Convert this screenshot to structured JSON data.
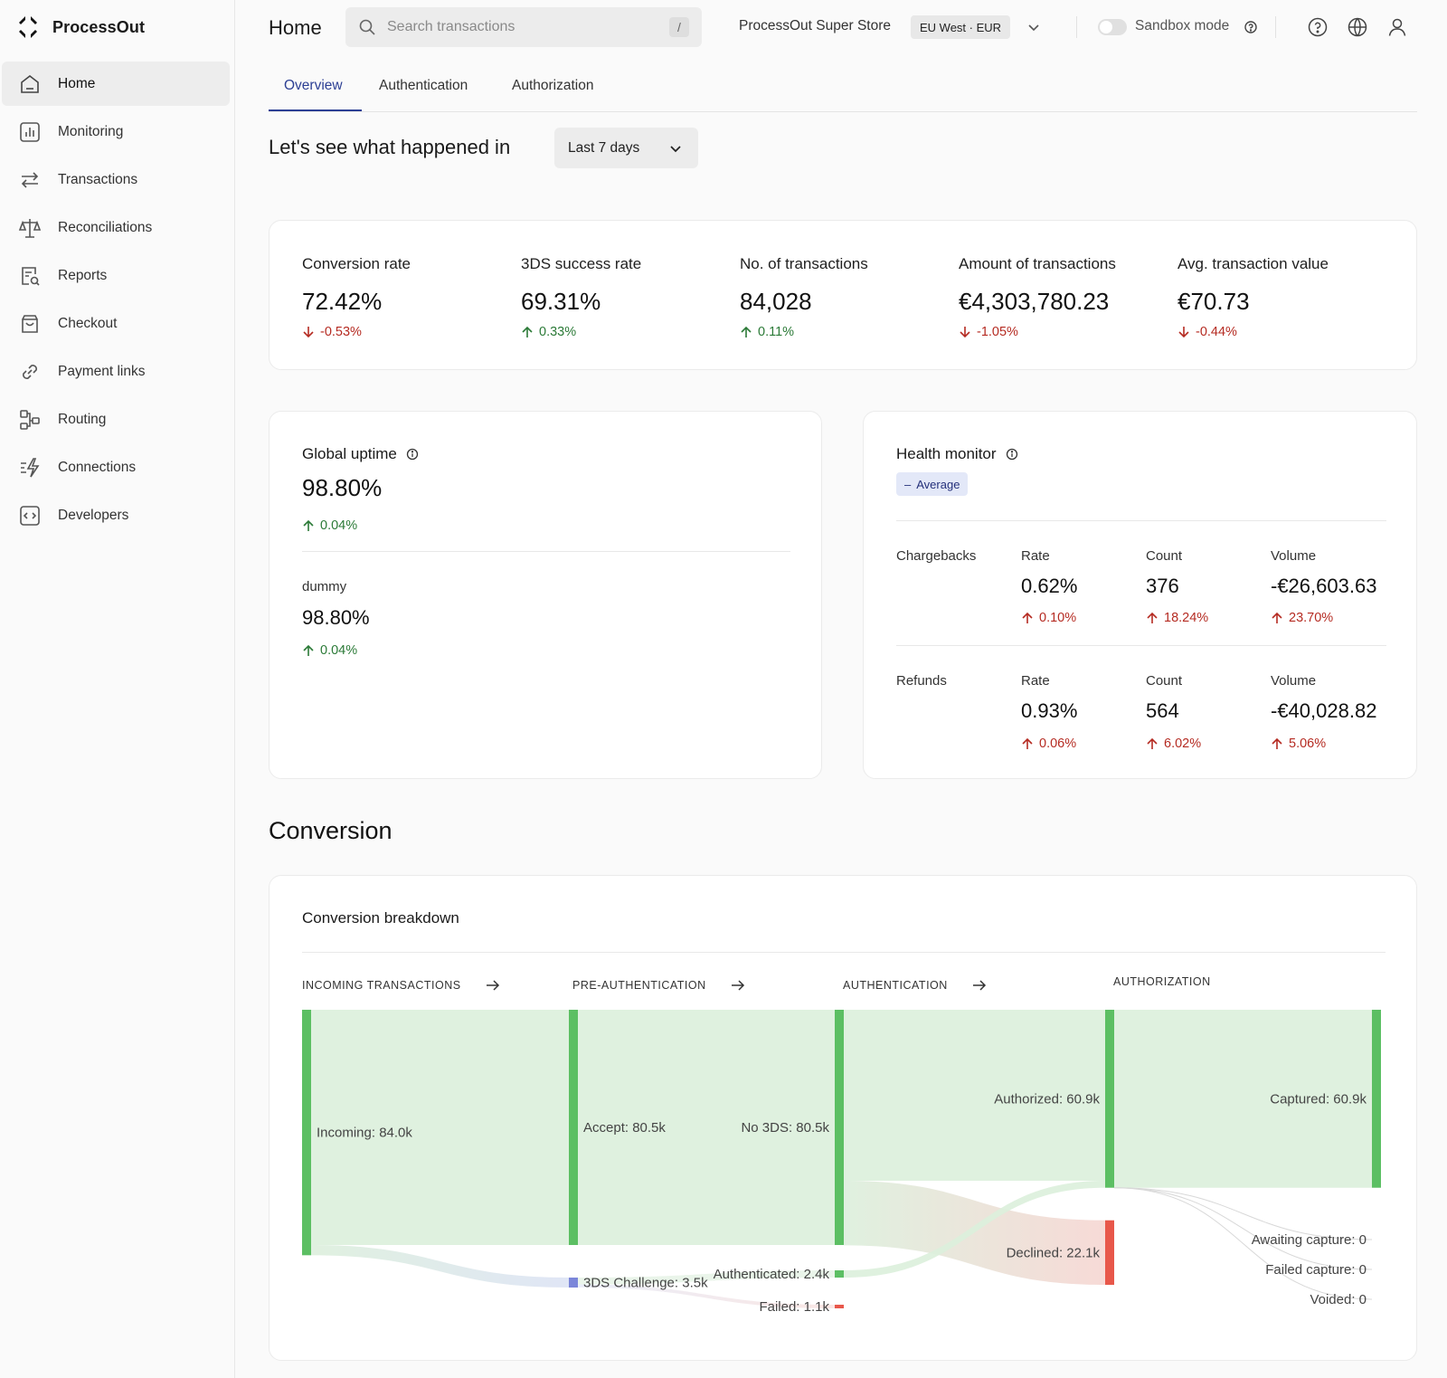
{
  "brand": {
    "name": "ProcessOut"
  },
  "sidebar": {
    "items": [
      {
        "label": "Home",
        "icon": "home-icon",
        "active": true
      },
      {
        "label": "Monitoring",
        "icon": "bar-chart-icon"
      },
      {
        "label": "Transactions",
        "icon": "arrows-exchange-icon"
      },
      {
        "label": "Reconciliations",
        "icon": "scale-icon"
      },
      {
        "label": "Reports",
        "icon": "report-search-icon"
      },
      {
        "label": "Checkout",
        "icon": "shopping-bag-icon"
      },
      {
        "label": "Payment links",
        "icon": "link-icon"
      },
      {
        "label": "Routing",
        "icon": "routing-icon"
      },
      {
        "label": "Connections",
        "icon": "lightning-icon"
      },
      {
        "label": "Developers",
        "icon": "code-icon"
      }
    ]
  },
  "header": {
    "title": "Home",
    "search_placeholder": "Search transactions",
    "search_shortcut": "/",
    "store_name": "ProcessOut Super Store",
    "region": "EU West · EUR",
    "sandbox_label": "Sandbox mode"
  },
  "tabs": [
    {
      "label": "Overview",
      "active": true
    },
    {
      "label": "Authentication"
    },
    {
      "label": "Authorization"
    }
  ],
  "period": {
    "heading": "Let's see what happened in",
    "selected": "Last 7 days"
  },
  "kpis": [
    {
      "label": "Conversion rate",
      "value": "72.42%",
      "delta": "-0.53%",
      "direction": "down"
    },
    {
      "label": "3DS success rate",
      "value": "69.31%",
      "delta": "0.33%",
      "direction": "up"
    },
    {
      "label": "No. of transactions",
      "value": "84,028",
      "delta": "0.11%",
      "direction": "up"
    },
    {
      "label": "Amount of transactions",
      "value": "€4,303,780.23",
      "delta": "-1.05%",
      "direction": "down"
    },
    {
      "label": "Avg. transaction value",
      "value": "€70.73",
      "delta": "-0.44%",
      "direction": "down"
    }
  ],
  "uptime": {
    "title": "Global uptime",
    "value": "98.80%",
    "delta": "0.04%",
    "provider": {
      "name": "dummy",
      "value": "98.80%",
      "delta": "0.04%"
    }
  },
  "health": {
    "title": "Health monitor",
    "badge": "Average",
    "chargebacks": {
      "label": "Chargebacks",
      "rate_label": "Rate",
      "rate": "0.62%",
      "rate_delta": "0.10%",
      "count_label": "Count",
      "count": "376",
      "count_delta": "18.24%",
      "volume_label": "Volume",
      "volume": "-€26,603.63",
      "volume_delta": "23.70%"
    },
    "refunds": {
      "label": "Refunds",
      "rate_label": "Rate",
      "rate": "0.93%",
      "rate_delta": "0.06%",
      "count_label": "Count",
      "count": "564",
      "count_delta": "6.02%",
      "volume_label": "Volume",
      "volume": "-€40,028.82",
      "volume_delta": "5.06%"
    }
  },
  "conversion": {
    "section_title": "Conversion",
    "card_title": "Conversion breakdown",
    "stages": [
      "INCOMING TRANSACTIONS",
      "PRE-AUTHENTICATION",
      "AUTHENTICATION",
      "AUTHORIZATION"
    ]
  },
  "chart_data": {
    "type": "sankey",
    "title": "Conversion breakdown",
    "columns": [
      "INCOMING TRANSACTIONS",
      "PRE-AUTHENTICATION",
      "AUTHENTICATION",
      "AUTHORIZATION"
    ],
    "nodes": [
      {
        "id": "incoming",
        "label": "Incoming: 84.0k",
        "value": 84.0,
        "column": 0,
        "status": "success"
      },
      {
        "id": "accept",
        "label": "Accept: 80.5k",
        "value": 80.5,
        "column": 1,
        "status": "success"
      },
      {
        "id": "challenge",
        "label": "3DS Challenge: 3.5k",
        "value": 3.5,
        "column": 1,
        "status": "pending"
      },
      {
        "id": "no3ds",
        "label": "No 3DS: 80.5k",
        "value": 80.5,
        "column": 2,
        "status": "success"
      },
      {
        "id": "authenticated",
        "label": "Authenticated: 2.4k",
        "value": 2.4,
        "column": 2,
        "status": "success"
      },
      {
        "id": "failed",
        "label": "Failed: 1.1k",
        "value": 1.1,
        "column": 2,
        "status": "error"
      },
      {
        "id": "authorized",
        "label": "Authorized: 60.9k",
        "value": 60.9,
        "column": 3,
        "status": "success"
      },
      {
        "id": "declined",
        "label": "Declined: 22.1k",
        "value": 22.1,
        "column": 3,
        "status": "error"
      },
      {
        "id": "captured",
        "label": "Captured: 60.9k",
        "value": 60.9,
        "column": 4,
        "status": "success"
      },
      {
        "id": "awaiting",
        "label": "Awaiting capture: 0",
        "value": 0,
        "column": 4,
        "status": "neutral"
      },
      {
        "id": "failedcap",
        "label": "Failed capture: 0",
        "value": 0,
        "column": 4,
        "status": "neutral"
      },
      {
        "id": "voided",
        "label": "Voided: 0",
        "value": 0,
        "column": 4,
        "status": "neutral"
      }
    ],
    "links": [
      {
        "source": "incoming",
        "target": "accept",
        "value": 80.5
      },
      {
        "source": "incoming",
        "target": "challenge",
        "value": 3.5
      },
      {
        "source": "accept",
        "target": "no3ds",
        "value": 80.5
      },
      {
        "source": "challenge",
        "target": "authenticated",
        "value": 2.4
      },
      {
        "source": "challenge",
        "target": "failed",
        "value": 1.1
      },
      {
        "source": "no3ds",
        "target": "authorized",
        "value": 58.5
      },
      {
        "source": "no3ds",
        "target": "declined",
        "value": 22.1
      },
      {
        "source": "authenticated",
        "target": "authorized",
        "value": 2.4
      },
      {
        "source": "authorized",
        "target": "captured",
        "value": 60.9
      }
    ],
    "colors": {
      "success": "#5cbf63",
      "error": "#e8574a",
      "pending": "#7b86d9",
      "neutral": "#bbbbbb",
      "success_link": "#dcefdc",
      "error_link": "#f6d6d2",
      "pending_link": "#dde3f5"
    }
  }
}
